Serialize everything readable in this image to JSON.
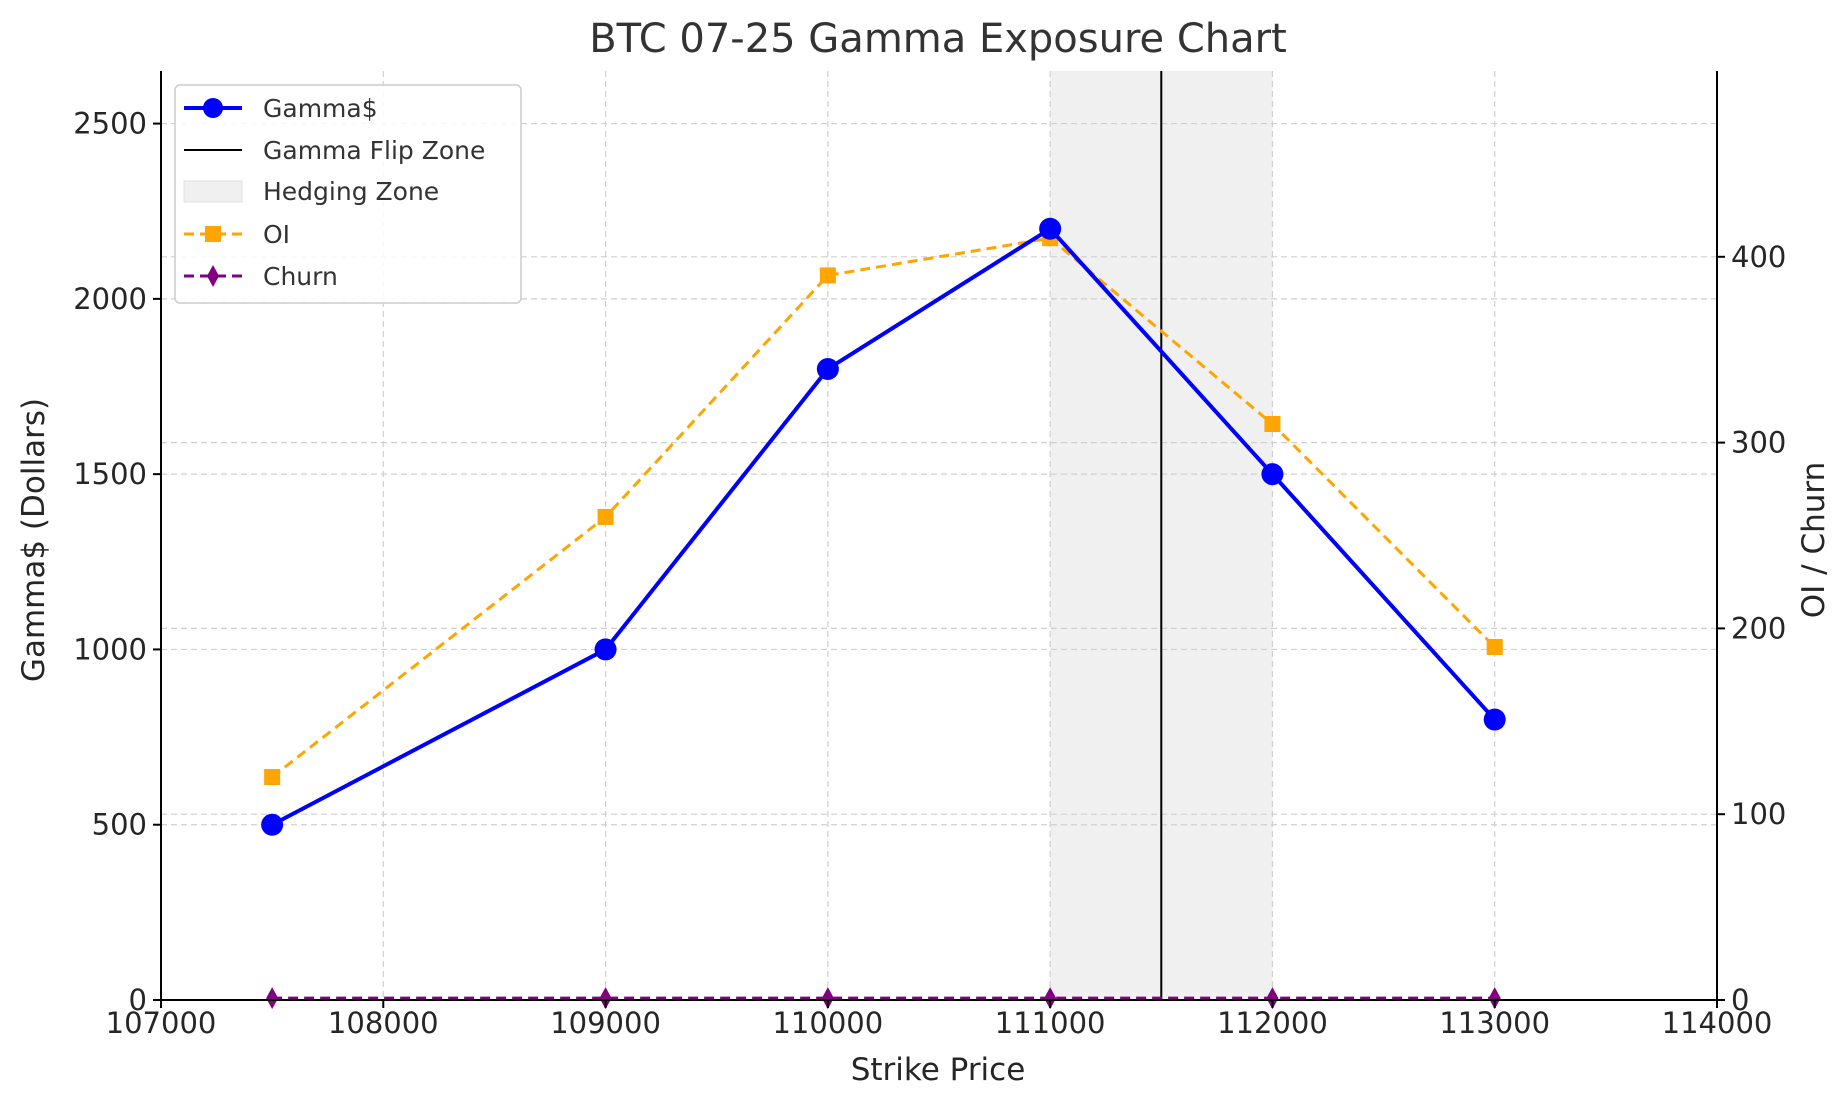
{
  "chart_data": {
    "type": "line",
    "title": "BTC 07-25 Gamma Exposure Chart",
    "xlabel": "Strike Price",
    "ylabel": "Gamma$ (Dollars)",
    "y2label": "OI / Churn",
    "xlim": [
      107000,
      114000
    ],
    "ylim": [
      0,
      2650
    ],
    "y2lim": [
      0,
      500
    ],
    "x_ticks": [
      107000,
      108000,
      109000,
      110000,
      111000,
      112000,
      113000,
      114000
    ],
    "y_ticks": [
      0,
      500,
      1000,
      1500,
      2000,
      2500
    ],
    "y2_ticks": [
      0,
      100,
      200,
      300,
      400
    ],
    "x_tick_labels": [
      "107000",
      "108000",
      "109000",
      "110000",
      "111000",
      "112000",
      "113000",
      "114000"
    ],
    "y_tick_labels": [
      "0",
      "500",
      "1000",
      "1500",
      "2000",
      "2500"
    ],
    "y2_tick_labels": [
      "0",
      "100",
      "200",
      "300",
      "400"
    ],
    "grid": true,
    "legend_position": "top-left",
    "x": [
      107500,
      109000,
      110000,
      111000,
      112000,
      113000
    ],
    "series": [
      {
        "name": "Gamma$",
        "axis": "left",
        "values": [
          500,
          1000,
          1800,
          2200,
          1500,
          800
        ],
        "color": "#0000ff",
        "style": "solid",
        "marker": "circle"
      },
      {
        "name": "OI",
        "axis": "right",
        "values": [
          120,
          260,
          390,
          410,
          310,
          190
        ],
        "color": "#ffa500",
        "style": "dashed",
        "marker": "square"
      },
      {
        "name": "Churn",
        "axis": "right",
        "values": [
          1,
          1,
          1,
          1,
          1,
          1
        ],
        "color": "#800080",
        "style": "dashed",
        "marker": "diamond"
      }
    ],
    "flip_zone": {
      "name": "Gamma Flip Zone",
      "x": 111500,
      "color": "#000000"
    },
    "hedging_zone": {
      "name": "Hedging Zone",
      "x_range": [
        111000,
        112000
      ],
      "color": "#f0f0f0"
    }
  }
}
